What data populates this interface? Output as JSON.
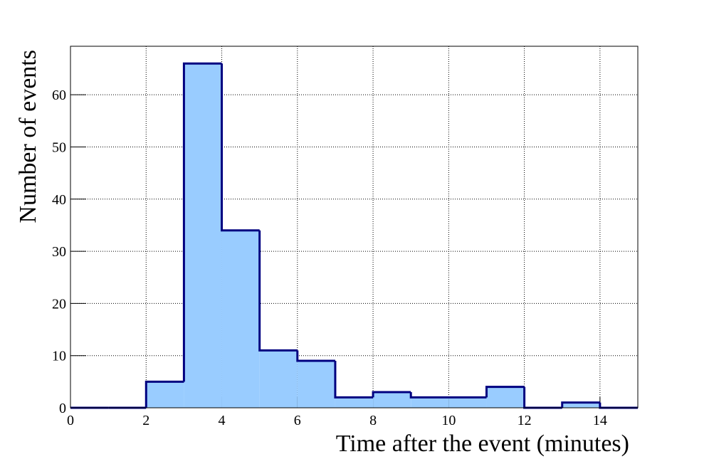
{
  "chart_data": {
    "type": "histogram",
    "x_label": "Time after the event (minutes)",
    "y_label": "Number of events",
    "bins": [
      0,
      1,
      2,
      3,
      4,
      5,
      6,
      7,
      8,
      9,
      10,
      11,
      12,
      13,
      14,
      15
    ],
    "values": [
      0,
      0,
      5,
      66,
      34,
      11,
      9,
      2,
      3,
      2,
      2,
      4,
      0,
      1,
      0
    ],
    "color": "#99ccff",
    "edge_color": "#000080",
    "xlim": [
      0,
      15
    ],
    "ylim": [
      0,
      69.3
    ],
    "xticks": [
      0,
      2,
      4,
      6,
      8,
      10,
      12,
      14
    ],
    "yticks": [
      0,
      10,
      20,
      30,
      40,
      50,
      60
    ],
    "grid": true
  }
}
